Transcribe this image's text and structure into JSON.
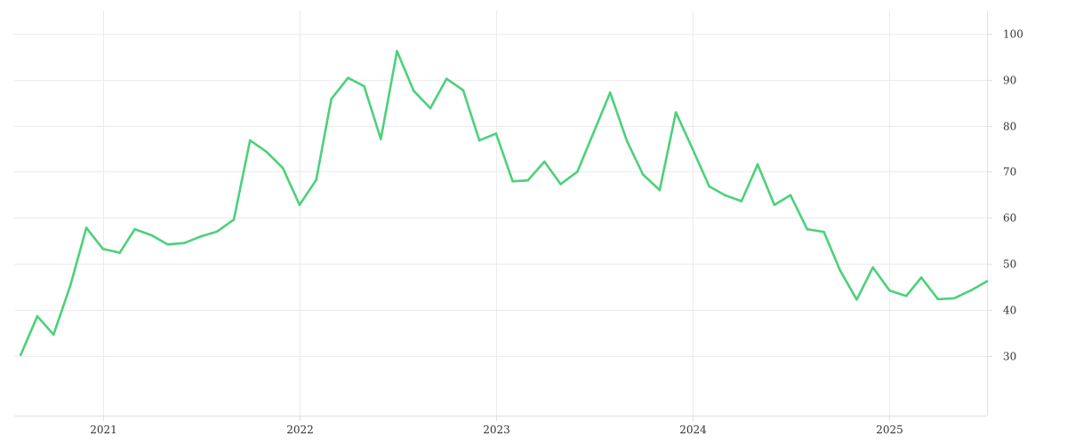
{
  "chart_data": {
    "type": "line",
    "title": "",
    "xlabel": "",
    "ylabel": "",
    "grid": true,
    "legend": "none",
    "y_axis_position": "right",
    "line_color": "#4cd17a",
    "grid_color": "#ebebeb",
    "ylim": [
      17,
      105
    ],
    "xlim": [
      "2020-07-20",
      "2025-07-01"
    ],
    "x_ticks": [
      {
        "label": "2021",
        "date": "2021-01-01"
      },
      {
        "label": "2022",
        "date": "2022-01-01"
      },
      {
        "label": "2023",
        "date": "2023-01-01"
      },
      {
        "label": "2024",
        "date": "2024-01-01"
      },
      {
        "label": "2025",
        "date": "2025-01-01"
      }
    ],
    "y_ticks": [
      30,
      40,
      50,
      60,
      70,
      80,
      90,
      100
    ],
    "series": [
      {
        "x": [
          "2020-08-01",
          "2020-09-01",
          "2020-10-01",
          "2020-11-01",
          "2020-12-01",
          "2021-01-01",
          "2021-02-01",
          "2021-03-01",
          "2021-04-01",
          "2021-05-01",
          "2021-06-01",
          "2021-07-01",
          "2021-08-01",
          "2021-09-01",
          "2021-10-01",
          "2021-11-01",
          "2021-12-01",
          "2022-01-01",
          "2022-02-01",
          "2022-03-01",
          "2022-04-01",
          "2022-05-01",
          "2022-06-01",
          "2022-07-01",
          "2022-08-01",
          "2022-09-01",
          "2022-10-01",
          "2022-11-01",
          "2022-12-01",
          "2023-01-01",
          "2023-02-01",
          "2023-03-01",
          "2023-04-01",
          "2023-05-01",
          "2023-06-01",
          "2023-07-01",
          "2023-08-01",
          "2023-09-01",
          "2023-10-01",
          "2023-11-01",
          "2023-12-01",
          "2024-01-01",
          "2024-02-01",
          "2024-03-01",
          "2024-04-01",
          "2024-05-01",
          "2024-06-01",
          "2024-07-01",
          "2024-08-01",
          "2024-09-01",
          "2024-10-01",
          "2024-11-01",
          "2024-12-01",
          "2025-01-01",
          "2025-02-01",
          "2025-03-01",
          "2025-04-01",
          "2025-05-01",
          "2025-06-01",
          "2025-07-01"
        ],
        "values": [
          30.2,
          38.6,
          34.6,
          45.2,
          57.8,
          53.2,
          52.4,
          57.5,
          56.2,
          54.2,
          54.5,
          55.9,
          57.0,
          59.6,
          76.8,
          74.3,
          70.8,
          62.8,
          68.2,
          85.8,
          90.4,
          88.6,
          77.1,
          96.2,
          87.6,
          83.8,
          90.2,
          87.7,
          76.8,
          78.3,
          67.9,
          68.1,
          72.2,
          67.3,
          70.0,
          78.4,
          87.2,
          76.7,
          69.4,
          66.0,
          82.9,
          75.0,
          66.8,
          64.9,
          63.6,
          71.6,
          62.8,
          64.9,
          57.5,
          56.9,
          48.6,
          42.2,
          49.2,
          44.2,
          43.0,
          47.0,
          42.3,
          42.5,
          44.2,
          46.2
        ]
      }
    ]
  }
}
